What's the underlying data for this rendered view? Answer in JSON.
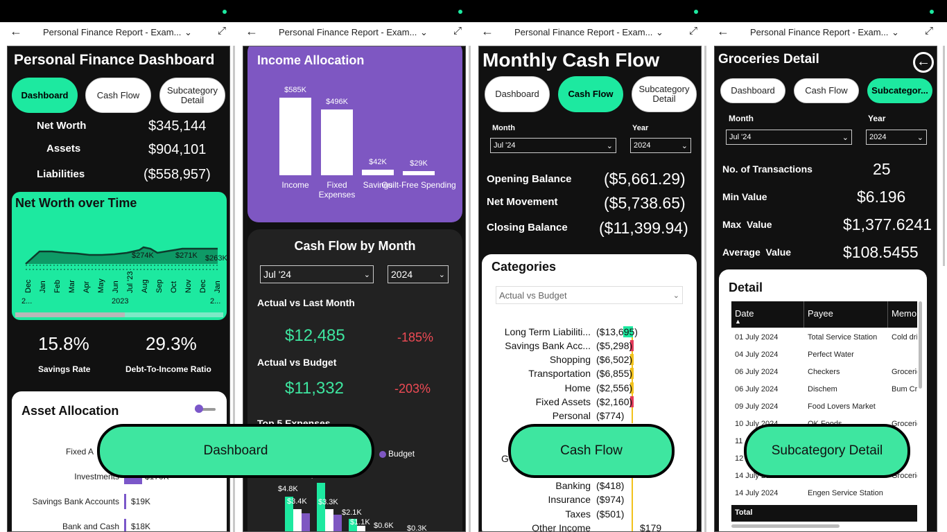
{
  "common": {
    "tab_title": "Personal Finance Report - Exam...",
    "back_symbol": "←",
    "chevron_symbol": "⌵",
    "shrink_symbol": "⤢"
  },
  "panel1": {
    "title": "Personal Finance Dashboard",
    "nav": [
      "Dashboard",
      "Cash Flow",
      "Subcategory Detail"
    ],
    "kpis": [
      {
        "label": "Net Worth",
        "value": "$345,144"
      },
      {
        "label": "Assets",
        "value": "$904,101"
      },
      {
        "label": "Liabilities",
        "value": "($558,957)"
      }
    ],
    "networth_chart": {
      "title": "Net Worth over Time",
      "months": [
        "Dec",
        "Jan",
        "Feb",
        "Mar",
        "Apr",
        "May",
        "Jun",
        "Jul '23",
        "Aug",
        "Sep",
        "Oct",
        "Nov",
        "Dec",
        "Jan"
      ],
      "year_labels": [
        "2...",
        "2023",
        "2..."
      ],
      "data_labels": [
        "$274K",
        "$271K",
        "$263K"
      ]
    },
    "rates": [
      {
        "value": "15.8%",
        "label": "Savings Rate"
      },
      {
        "value": "29.3%",
        "label": "Debt-To-Income Ratio"
      }
    ],
    "asset_allocation": {
      "title": "Asset Allocation",
      "items": [
        {
          "label": "Fixed A",
          "value": ""
        },
        {
          "label": "Investments",
          "value": "$170K"
        },
        {
          "label": "Savings Bank Accounts",
          "value": "$19K"
        },
        {
          "label": "Bank and Cash",
          "value": "$18K"
        }
      ]
    },
    "button": "Dashboard"
  },
  "panel2": {
    "chart_data": {
      "type": "bar",
      "title": "Income Allocation",
      "categories": [
        "Income",
        "Fixed Expenses",
        "Savings",
        "Guilt-Free Spending"
      ],
      "values": [
        585,
        496,
        42,
        29
      ],
      "value_labels": [
        "$585K",
        "$496K",
        "$42K",
        "$29K"
      ],
      "ylim": [
        0,
        585
      ]
    },
    "cash_flow": {
      "title": "Cash Flow by Month",
      "month": "Jul '24",
      "year": "2024",
      "actual_vs_last_label": "Actual vs Last Month",
      "actual_vs_last_value": "$12,485",
      "actual_vs_last_pct": "-185%",
      "actual_vs_budget_label": "Actual vs Budget",
      "actual_vs_budget_value": "$11,332",
      "actual_vs_budget_pct": "-203%",
      "top5_title": "Top 5 Expenses",
      "legend_budget": "Budget",
      "bar_labels": [
        "$4.8K",
        "$3.4K",
        "$6.3K",
        "$3.3K",
        "$2.1K",
        "$1.1K",
        "$0.6K",
        "$0.3K"
      ]
    },
    "button": "Dashboard"
  },
  "panel3": {
    "title": "Monthly Cash Flow",
    "nav": [
      "Dashboard",
      "Cash Flow",
      "Subcategory Detail"
    ],
    "month_label": "Month",
    "year_label": "Year",
    "month": "Jul '24",
    "year": "2024",
    "balances": [
      {
        "label": "Opening Balance",
        "value": "($5,661.29)"
      },
      {
        "label": "Net Movement",
        "value": "($5,738.65)"
      },
      {
        "label": "Closing Balance",
        "value": "($11,399.94)"
      }
    ],
    "categories": {
      "title": "Categories",
      "filter": "Actual vs Budget",
      "rows": [
        {
          "label": "Long Term Liabiliti...",
          "value": "($13,695)",
          "color": "#1de9a0"
        },
        {
          "label": "Savings Bank Acc...",
          "value": "($5,298)",
          "color": "#e23a5a"
        },
        {
          "label": "Shopping",
          "value": "($6,502)",
          "color": "#f2c21b"
        },
        {
          "label": "Transportation",
          "value": "($6,855)",
          "color": "#f2c21b"
        },
        {
          "label": "Home",
          "value": "($2,556)",
          "color": "#f2c21b"
        },
        {
          "label": "Fixed Assets",
          "value": "($2,160)",
          "color": "#e23a5a"
        },
        {
          "label": "Personal",
          "value": "($774)",
          "color": "#f2c21b"
        }
      ],
      "g_label": "G",
      "lower_rows": [
        {
          "label": "Banking",
          "value": "($418)"
        },
        {
          "label": "Insurance",
          "value": "($974)"
        },
        {
          "label": "Taxes",
          "value": "($501)"
        },
        {
          "label": "Other Income",
          "value": "$179"
        }
      ]
    },
    "button": "Cash Flow"
  },
  "panel4": {
    "title": "Groceries Detail",
    "nav": [
      "Dashboard",
      "Cash Flow",
      "Subcategor..."
    ],
    "month_label": "Month",
    "year_label": "Year",
    "month": "Jul '24",
    "year": "2024",
    "stats": [
      {
        "label": "No. of Transactions",
        "value": "25"
      },
      {
        "label": "Min Value",
        "value": "$6.196"
      },
      {
        "label": "Max  Value",
        "value": "$1,377.6241"
      },
      {
        "label": "Average  Value",
        "value": "$108.5455"
      }
    ],
    "detail": {
      "title": "Detail",
      "columns": [
        "Date",
        "Payee",
        "Memo"
      ],
      "rows": [
        [
          "01 July 2024",
          "Total Service Station",
          "Cold dri"
        ],
        [
          "04 July 2024",
          "Perfect Water",
          ""
        ],
        [
          "06 July 2024",
          "Checkers",
          "Grocerie"
        ],
        [
          "06 July 2024",
          "Dischem",
          "Bum Cre"
        ],
        [
          "09 July 2024",
          "Food Lovers Market",
          ""
        ],
        [
          "10 July 2024",
          "OK Foods",
          "Grocerie"
        ],
        [
          "11",
          "",
          "rie"
        ],
        [
          "12",
          "",
          ""
        ],
        [
          "14 July 2024",
          "Checkers",
          "Grocerie"
        ],
        [
          "14 July 2024",
          "Engen Service Station",
          ""
        ]
      ],
      "total_label": "Total"
    },
    "button": "Subcategory Detail"
  }
}
